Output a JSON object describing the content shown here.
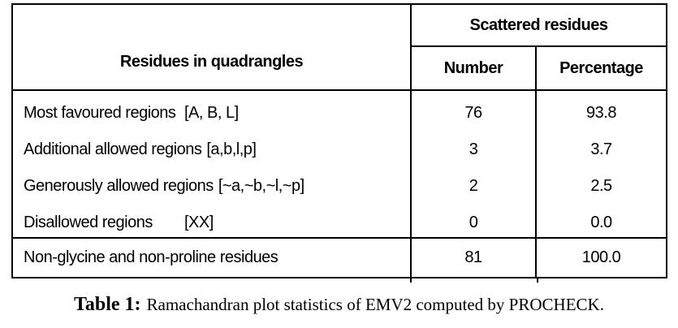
{
  "table": {
    "header": {
      "col1": "Residues in quadrangles",
      "group": "Scattered residues",
      "sub_number": "Number",
      "sub_percentage": "Percentage"
    },
    "rows": [
      {
        "name": "Most favoured regions",
        "code": "[A, B, L]",
        "number": "76",
        "percentage": "93.8"
      },
      {
        "name": "Additional allowed regions",
        "code": "[a,b,l,p]",
        "number": "3",
        "percentage": "3.7"
      },
      {
        "name": "Generously allowed regions",
        "code": "[~a,~b,~l,~p]",
        "number": "2",
        "percentage": "2.5"
      },
      {
        "name": "Disallowed regions",
        "code": "[XX]",
        "number": "0",
        "percentage": "0.0"
      }
    ],
    "total_row": {
      "name": "Non-glycine and non-proline residues",
      "number": "81",
      "percentage": "100.0"
    }
  },
  "caption": {
    "label": "Table 1:",
    "text": "Ramachandran plot statistics of EMV2 computed by PROCHECK."
  }
}
